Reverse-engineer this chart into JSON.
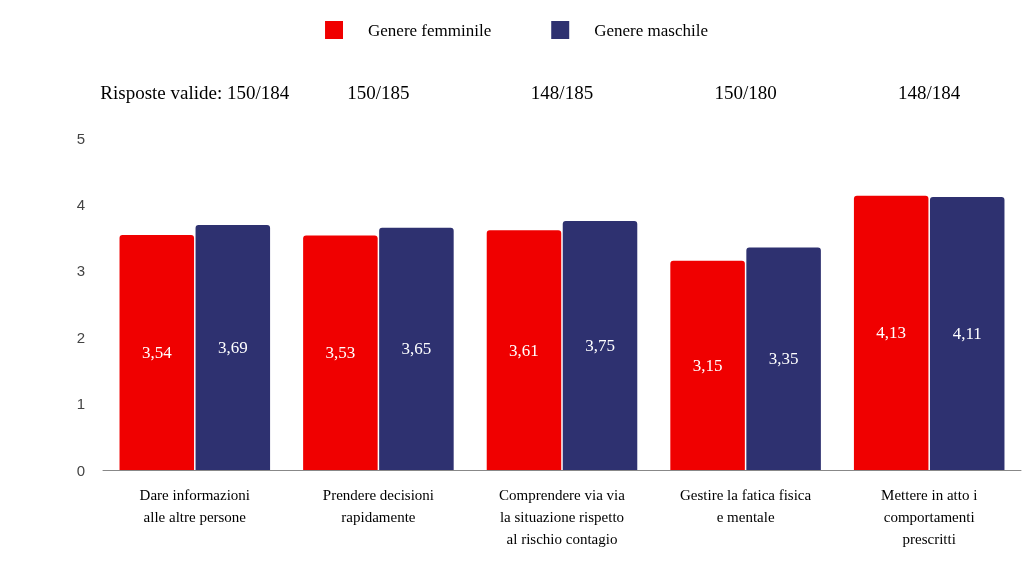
{
  "chart_data": {
    "type": "bar",
    "categories": [
      "Dare informazioni\nalle altre persone",
      "Prendere decisioni\nrapidamente",
      "Comprendere via via\nla situazione rispetto\nal rischio contagio",
      "Gestire la fatica fisica\ne mentale",
      "Mettere in atto i\ncomportamenti\nprescritti"
    ],
    "series": [
      {
        "name": "Genere femminile",
        "color": "#f00000",
        "values": [
          3.54,
          3.53,
          3.61,
          3.15,
          4.13
        ],
        "value_labels": [
          "3,54",
          "3,53",
          "3,61",
          "3,15",
          "4,13"
        ]
      },
      {
        "name": "Genere maschile",
        "color": "#2e3170",
        "values": [
          3.69,
          3.65,
          3.75,
          3.35,
          4.11
        ],
        "value_labels": [
          "3,69",
          "3,65",
          "3,75",
          "3,35",
          "4,11"
        ]
      }
    ],
    "annotations": [
      "Risposte valide: 150/184",
      "150/185",
      "148/185",
      "150/180",
      "148/184"
    ],
    "ylim": [
      0,
      5
    ],
    "yticks": [
      0,
      1,
      2,
      3,
      4,
      5
    ],
    "grid": false,
    "legend": "top"
  }
}
